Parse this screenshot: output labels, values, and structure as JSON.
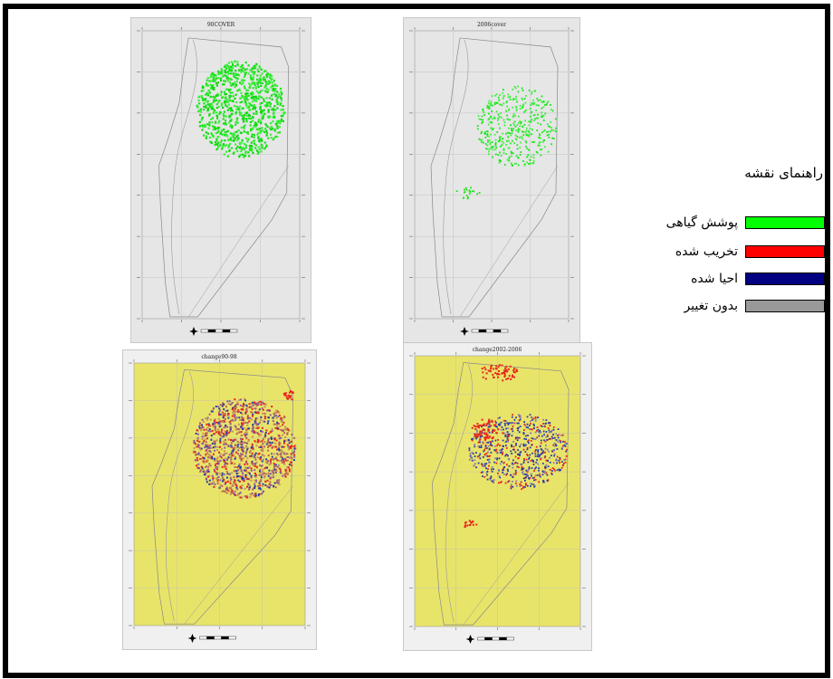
{
  "maps": [
    {
      "title": "90COVER",
      "background": "#e6e6e6",
      "kind": "cover"
    },
    {
      "title": "2006cover",
      "background": "#e6e6e6",
      "kind": "cover2"
    },
    {
      "title": "change90-98",
      "background": "#e8e46a",
      "kind": "change1"
    },
    {
      "title": "change2002-2006",
      "background": "#e8e46a",
      "kind": "change2"
    }
  ],
  "legend": {
    "title": "راهنمای نقشه",
    "items": [
      {
        "label": "پوشش گیاهی",
        "color": "#00ff00"
      },
      {
        "label": "تخریب شده",
        "color": "#ff0000"
      },
      {
        "label": "احیا شده",
        "color": "#000080"
      },
      {
        "label": "بدون تغییر",
        "color": "#999999"
      }
    ]
  },
  "colors": {
    "frame": "#000000",
    "vegetation": "#19e619",
    "degraded": "#e8241c",
    "restored": "#2a3aa8",
    "unchanged_mix": "#c8905a",
    "change_background": "#e8e46a"
  }
}
